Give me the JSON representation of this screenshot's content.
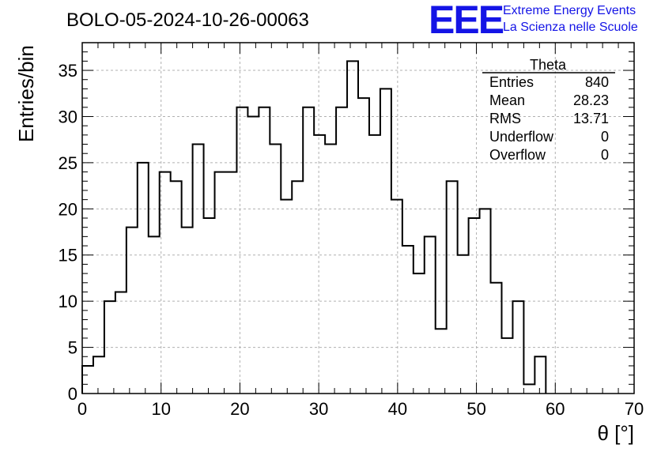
{
  "header": {
    "title": "BOLO-05-2024-10-26-00063",
    "logo_text": "EEE",
    "org_line1": "Extreme Energy Events",
    "org_line2": "La Scienza nelle Scuole",
    "accent_color": "#1414e6"
  },
  "stats": {
    "name": "Theta",
    "rows": [
      {
        "label": "Entries",
        "value": "840"
      },
      {
        "label": "Mean",
        "value": "28.23"
      },
      {
        "label": "RMS",
        "value": "13.71"
      },
      {
        "label": "Underflow",
        "value": "0"
      },
      {
        "label": "Overflow",
        "value": "0"
      }
    ]
  },
  "chart_data": {
    "type": "histogram",
    "title": "BOLO-05-2024-10-26-00063",
    "xlabel": "θ [°]",
    "ylabel": "Entries/bin",
    "xlim": [
      0,
      70
    ],
    "ylim": [
      0,
      38
    ],
    "bin_width": 1.4,
    "x_ticks": [
      0,
      10,
      20,
      30,
      40,
      50,
      60,
      70
    ],
    "y_ticks": [
      0,
      5,
      10,
      15,
      20,
      25,
      30,
      35
    ],
    "grid": true,
    "legend": "top-right stats box",
    "line_color": "#000000",
    "values": [
      3,
      4,
      10,
      11,
      18,
      25,
      17,
      24,
      23,
      18,
      27,
      19,
      24,
      24,
      31,
      30,
      31,
      27,
      21,
      23,
      31,
      28,
      27,
      31,
      36,
      32,
      28,
      33,
      21,
      16,
      13,
      17,
      7,
      23,
      15,
      19,
      20,
      12,
      6,
      10,
      1,
      4,
      0,
      0,
      0,
      0,
      0,
      0,
      0,
      0
    ]
  }
}
